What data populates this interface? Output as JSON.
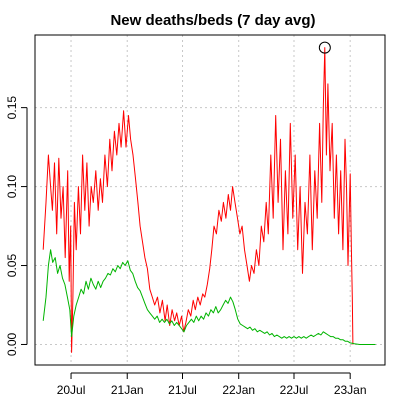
{
  "chart_data": {
    "type": "line",
    "title": "New deaths/beds (7 day avg)",
    "xlabel": "",
    "ylabel": "",
    "xlim": [
      "2020-03-05",
      "2023-04-25"
    ],
    "ylim": [
      -0.013,
      0.196
    ],
    "grid": true,
    "legend": "none",
    "x_ticks": [
      {
        "label": "20Jul",
        "date": "2020-07-01"
      },
      {
        "label": "21Jan",
        "date": "2021-01-01"
      },
      {
        "label": "21Jul",
        "date": "2021-07-01"
      },
      {
        "label": "22Jan",
        "date": "2022-01-01"
      },
      {
        "label": "22Jul",
        "date": "2022-07-01"
      },
      {
        "label": "23Jan",
        "date": "2023-01-01"
      }
    ],
    "y_ticks": [
      {
        "label": "0.00",
        "value": 0.0
      },
      {
        "label": "0.05",
        "value": 0.05
      },
      {
        "label": "0.10",
        "value": 0.1
      },
      {
        "label": "0.15",
        "value": 0.15
      }
    ],
    "annotations": [
      {
        "type": "circle-marker",
        "x": "2022-10-10",
        "y": 0.188,
        "color": "#000000"
      }
    ],
    "series": [
      {
        "color": "#ff0000",
        "points": [
          [
            "2020-04-01",
            0.06
          ],
          [
            "2020-04-10",
            0.09
          ],
          [
            "2020-04-18",
            0.12
          ],
          [
            "2020-04-25",
            0.1
          ],
          [
            "2020-05-01",
            0.085
          ],
          [
            "2020-05-08",
            0.115
          ],
          [
            "2020-05-15",
            0.07
          ],
          [
            "2020-05-22",
            0.118
          ],
          [
            "2020-05-29",
            0.08
          ],
          [
            "2020-06-05",
            0.1
          ],
          [
            "2020-06-12",
            0.055
          ],
          [
            "2020-06-20",
            0.11
          ],
          [
            "2020-06-25",
            0.04
          ],
          [
            "2020-06-30",
            0.075
          ],
          [
            "2020-07-03",
            -0.005
          ],
          [
            "2020-07-07",
            0.03
          ],
          [
            "2020-07-12",
            0.09
          ],
          [
            "2020-07-18",
            0.06
          ],
          [
            "2020-07-25",
            0.1
          ],
          [
            "2020-08-01",
            0.07
          ],
          [
            "2020-08-08",
            0.12
          ],
          [
            "2020-08-15",
            0.085
          ],
          [
            "2020-08-22",
            0.115
          ],
          [
            "2020-08-29",
            0.075
          ],
          [
            "2020-09-05",
            0.1
          ],
          [
            "2020-09-12",
            0.09
          ],
          [
            "2020-09-20",
            0.11
          ],
          [
            "2020-09-28",
            0.085
          ],
          [
            "2020-10-05",
            0.105
          ],
          [
            "2020-10-12",
            0.09
          ],
          [
            "2020-10-20",
            0.12
          ],
          [
            "2020-10-28",
            0.1
          ],
          [
            "2020-11-05",
            0.13
          ],
          [
            "2020-11-12",
            0.11
          ],
          [
            "2020-11-20",
            0.135
          ],
          [
            "2020-11-28",
            0.12
          ],
          [
            "2020-12-05",
            0.14
          ],
          [
            "2020-12-12",
            0.125
          ],
          [
            "2020-12-20",
            0.148
          ],
          [
            "2020-12-28",
            0.125
          ],
          [
            "2021-01-05",
            0.145
          ],
          [
            "2021-01-12",
            0.13
          ],
          [
            "2021-01-20",
            0.12
          ],
          [
            "2021-01-28",
            0.105
          ],
          [
            "2021-02-05",
            0.09
          ],
          [
            "2021-02-12",
            0.075
          ],
          [
            "2021-02-20",
            0.065
          ],
          [
            "2021-02-28",
            0.055
          ],
          [
            "2021-03-08",
            0.048
          ],
          [
            "2021-03-16",
            0.035
          ],
          [
            "2021-03-24",
            0.03
          ],
          [
            "2021-04-01",
            0.025
          ],
          [
            "2021-04-10",
            0.03
          ],
          [
            "2021-04-18",
            0.02
          ],
          [
            "2021-04-26",
            0.028
          ],
          [
            "2021-05-05",
            0.015
          ],
          [
            "2021-05-12",
            0.025
          ],
          [
            "2021-05-20",
            0.012
          ],
          [
            "2021-05-28",
            0.022
          ],
          [
            "2021-06-05",
            0.015
          ],
          [
            "2021-06-12",
            0.02
          ],
          [
            "2021-06-20",
            0.012
          ],
          [
            "2021-06-28",
            0.018
          ],
          [
            "2021-07-05",
            0.008
          ],
          [
            "2021-07-12",
            0.014
          ],
          [
            "2021-07-20",
            0.022
          ],
          [
            "2021-07-28",
            0.018
          ],
          [
            "2021-08-05",
            0.028
          ],
          [
            "2021-08-12",
            0.022
          ],
          [
            "2021-08-20",
            0.03
          ],
          [
            "2021-08-28",
            0.025
          ],
          [
            "2021-09-05",
            0.032
          ],
          [
            "2021-09-12",
            0.03
          ],
          [
            "2021-09-20",
            0.038
          ],
          [
            "2021-09-28",
            0.048
          ],
          [
            "2021-10-05",
            0.06
          ],
          [
            "2021-10-12",
            0.075
          ],
          [
            "2021-10-20",
            0.07
          ],
          [
            "2021-10-28",
            0.085
          ],
          [
            "2021-11-05",
            0.078
          ],
          [
            "2021-11-12",
            0.09
          ],
          [
            "2021-11-20",
            0.08
          ],
          [
            "2021-11-28",
            0.095
          ],
          [
            "2021-12-05",
            0.085
          ],
          [
            "2021-12-12",
            0.1
          ],
          [
            "2021-12-20",
            0.09
          ],
          [
            "2021-12-28",
            0.08
          ],
          [
            "2022-01-05",
            0.07
          ],
          [
            "2022-01-12",
            0.075
          ],
          [
            "2022-01-20",
            0.06
          ],
          [
            "2022-01-28",
            0.05
          ],
          [
            "2022-02-05",
            0.04
          ],
          [
            "2022-02-12",
            0.05
          ],
          [
            "2022-02-20",
            0.045
          ],
          [
            "2022-02-28",
            0.06
          ],
          [
            "2022-03-08",
            0.05
          ],
          [
            "2022-03-16",
            0.075
          ],
          [
            "2022-03-24",
            0.065
          ],
          [
            "2022-04-01",
            0.09
          ],
          [
            "2022-04-08",
            0.07
          ],
          [
            "2022-04-16",
            0.12
          ],
          [
            "2022-04-24",
            0.08
          ],
          [
            "2022-05-02",
            0.145
          ],
          [
            "2022-05-10",
            0.09
          ],
          [
            "2022-05-18",
            0.13
          ],
          [
            "2022-05-26",
            0.06
          ],
          [
            "2022-06-03",
            0.11
          ],
          [
            "2022-06-11",
            0.07
          ],
          [
            "2022-06-19",
            0.14
          ],
          [
            "2022-06-27",
            0.08
          ],
          [
            "2022-07-05",
            0.12
          ],
          [
            "2022-07-13",
            0.06
          ],
          [
            "2022-07-21",
            0.1
          ],
          [
            "2022-07-29",
            0.045
          ],
          [
            "2022-08-06",
            0.09
          ],
          [
            "2022-08-14",
            0.07
          ],
          [
            "2022-08-22",
            0.12
          ],
          [
            "2022-08-30",
            0.06
          ],
          [
            "2022-09-07",
            0.11
          ],
          [
            "2022-09-15",
            0.08
          ],
          [
            "2022-09-23",
            0.14
          ],
          [
            "2022-09-30",
            0.09
          ],
          [
            "2022-10-05",
            0.15
          ],
          [
            "2022-10-10",
            0.188
          ],
          [
            "2022-10-15",
            0.12
          ],
          [
            "2022-10-20",
            0.165
          ],
          [
            "2022-10-27",
            0.11
          ],
          [
            "2022-11-03",
            0.14
          ],
          [
            "2022-11-10",
            0.08
          ],
          [
            "2022-11-17",
            0.12
          ],
          [
            "2022-11-24",
            0.07
          ],
          [
            "2022-12-01",
            0.11
          ],
          [
            "2022-12-08",
            0.06
          ],
          [
            "2022-12-15",
            0.13
          ],
          [
            "2022-12-20",
            0.1
          ],
          [
            "2022-12-25",
            0.05
          ],
          [
            "2023-01-01",
            0.108
          ],
          [
            "2023-01-05",
            0.06
          ],
          [
            "2023-01-08",
            0.03
          ],
          [
            "2023-01-10",
            0.0
          ]
        ]
      },
      {
        "color": "#00b400",
        "points": [
          [
            "2020-04-01",
            0.015
          ],
          [
            "2020-04-10",
            0.03
          ],
          [
            "2020-04-18",
            0.05
          ],
          [
            "2020-04-25",
            0.06
          ],
          [
            "2020-05-02",
            0.052
          ],
          [
            "2020-05-10",
            0.055
          ],
          [
            "2020-05-18",
            0.045
          ],
          [
            "2020-05-26",
            0.05
          ],
          [
            "2020-06-03",
            0.042
          ],
          [
            "2020-06-11",
            0.038
          ],
          [
            "2020-06-19",
            0.03
          ],
          [
            "2020-06-27",
            0.022
          ],
          [
            "2020-07-03",
            0.005
          ],
          [
            "2020-07-10",
            0.018
          ],
          [
            "2020-07-18",
            0.025
          ],
          [
            "2020-07-26",
            0.03
          ],
          [
            "2020-08-03",
            0.035
          ],
          [
            "2020-08-11",
            0.032
          ],
          [
            "2020-08-19",
            0.04
          ],
          [
            "2020-08-27",
            0.035
          ],
          [
            "2020-09-04",
            0.042
          ],
          [
            "2020-09-12",
            0.038
          ],
          [
            "2020-09-20",
            0.035
          ],
          [
            "2020-09-28",
            0.04
          ],
          [
            "2020-10-06",
            0.036
          ],
          [
            "2020-10-14",
            0.04
          ],
          [
            "2020-10-22",
            0.042
          ],
          [
            "2020-10-30",
            0.045
          ],
          [
            "2020-11-07",
            0.044
          ],
          [
            "2020-11-15",
            0.048
          ],
          [
            "2020-11-23",
            0.046
          ],
          [
            "2020-12-01",
            0.05
          ],
          [
            "2020-12-09",
            0.048
          ],
          [
            "2020-12-17",
            0.052
          ],
          [
            "2020-12-25",
            0.05
          ],
          [
            "2021-01-03",
            0.053
          ],
          [
            "2021-01-11",
            0.047
          ],
          [
            "2021-01-19",
            0.045
          ],
          [
            "2021-01-27",
            0.04
          ],
          [
            "2021-02-04",
            0.036
          ],
          [
            "2021-02-12",
            0.034
          ],
          [
            "2021-02-20",
            0.03
          ],
          [
            "2021-02-28",
            0.026
          ],
          [
            "2021-03-08",
            0.022
          ],
          [
            "2021-03-16",
            0.02
          ],
          [
            "2021-03-24",
            0.018
          ],
          [
            "2021-04-01",
            0.016
          ],
          [
            "2021-04-09",
            0.018
          ],
          [
            "2021-04-17",
            0.014
          ],
          [
            "2021-04-25",
            0.016
          ],
          [
            "2021-05-03",
            0.014
          ],
          [
            "2021-05-11",
            0.016
          ],
          [
            "2021-05-19",
            0.013
          ],
          [
            "2021-05-27",
            0.015
          ],
          [
            "2021-06-04",
            0.012
          ],
          [
            "2021-06-12",
            0.014
          ],
          [
            "2021-06-20",
            0.012
          ],
          [
            "2021-06-28",
            0.01
          ],
          [
            "2021-07-06",
            0.008
          ],
          [
            "2021-07-14",
            0.012
          ],
          [
            "2021-07-22",
            0.014
          ],
          [
            "2021-07-30",
            0.016
          ],
          [
            "2021-08-07",
            0.014
          ],
          [
            "2021-08-15",
            0.018
          ],
          [
            "2021-08-23",
            0.015
          ],
          [
            "2021-08-31",
            0.018
          ],
          [
            "2021-09-08",
            0.016
          ],
          [
            "2021-09-16",
            0.02
          ],
          [
            "2021-09-24",
            0.018
          ],
          [
            "2021-10-02",
            0.022
          ],
          [
            "2021-10-10",
            0.02
          ],
          [
            "2021-10-18",
            0.024
          ],
          [
            "2021-10-26",
            0.02
          ],
          [
            "2021-11-03",
            0.022
          ],
          [
            "2021-11-11",
            0.025
          ],
          [
            "2021-11-19",
            0.028
          ],
          [
            "2021-11-27",
            0.026
          ],
          [
            "2021-12-05",
            0.03
          ],
          [
            "2021-12-13",
            0.027
          ],
          [
            "2021-12-21",
            0.022
          ],
          [
            "2021-12-29",
            0.016
          ],
          [
            "2022-01-06",
            0.013
          ],
          [
            "2022-01-14",
            0.012
          ],
          [
            "2022-01-22",
            0.011
          ],
          [
            "2022-01-30",
            0.01
          ],
          [
            "2022-02-07",
            0.011
          ],
          [
            "2022-02-15",
            0.009
          ],
          [
            "2022-02-23",
            0.01
          ],
          [
            "2022-03-03",
            0.008
          ],
          [
            "2022-03-11",
            0.009
          ],
          [
            "2022-03-19",
            0.008
          ],
          [
            "2022-03-27",
            0.007
          ],
          [
            "2022-04-04",
            0.008
          ],
          [
            "2022-04-12",
            0.006
          ],
          [
            "2022-04-20",
            0.007
          ],
          [
            "2022-04-28",
            0.005
          ],
          [
            "2022-05-06",
            0.006
          ],
          [
            "2022-05-14",
            0.005
          ],
          [
            "2022-05-22",
            0.004
          ],
          [
            "2022-05-30",
            0.005
          ],
          [
            "2022-06-07",
            0.004
          ],
          [
            "2022-06-15",
            0.005
          ],
          [
            "2022-06-23",
            0.004
          ],
          [
            "2022-07-01",
            0.005
          ],
          [
            "2022-07-09",
            0.004
          ],
          [
            "2022-07-17",
            0.005
          ],
          [
            "2022-07-25",
            0.004
          ],
          [
            "2022-08-02",
            0.005
          ],
          [
            "2022-08-10",
            0.004
          ],
          [
            "2022-08-18",
            0.005
          ],
          [
            "2022-08-26",
            0.006
          ],
          [
            "2022-09-03",
            0.005
          ],
          [
            "2022-09-11",
            0.006
          ],
          [
            "2022-09-19",
            0.007
          ],
          [
            "2022-09-27",
            0.006
          ],
          [
            "2022-10-05",
            0.008
          ],
          [
            "2022-10-13",
            0.007
          ],
          [
            "2022-10-21",
            0.006
          ],
          [
            "2022-10-29",
            0.005
          ],
          [
            "2022-11-06",
            0.005
          ],
          [
            "2022-11-14",
            0.004
          ],
          [
            "2022-11-22",
            0.004
          ],
          [
            "2022-11-30",
            0.003
          ],
          [
            "2022-12-08",
            0.003
          ],
          [
            "2022-12-16",
            0.002
          ],
          [
            "2022-12-24",
            0.002
          ],
          [
            "2023-01-01",
            0.001
          ],
          [
            "2023-01-15",
            0.0005
          ],
          [
            "2023-02-01",
            0.0
          ],
          [
            "2023-02-20",
            0.0
          ],
          [
            "2023-03-10",
            0.0
          ],
          [
            "2023-03-25",
            0.0
          ]
        ]
      }
    ]
  }
}
